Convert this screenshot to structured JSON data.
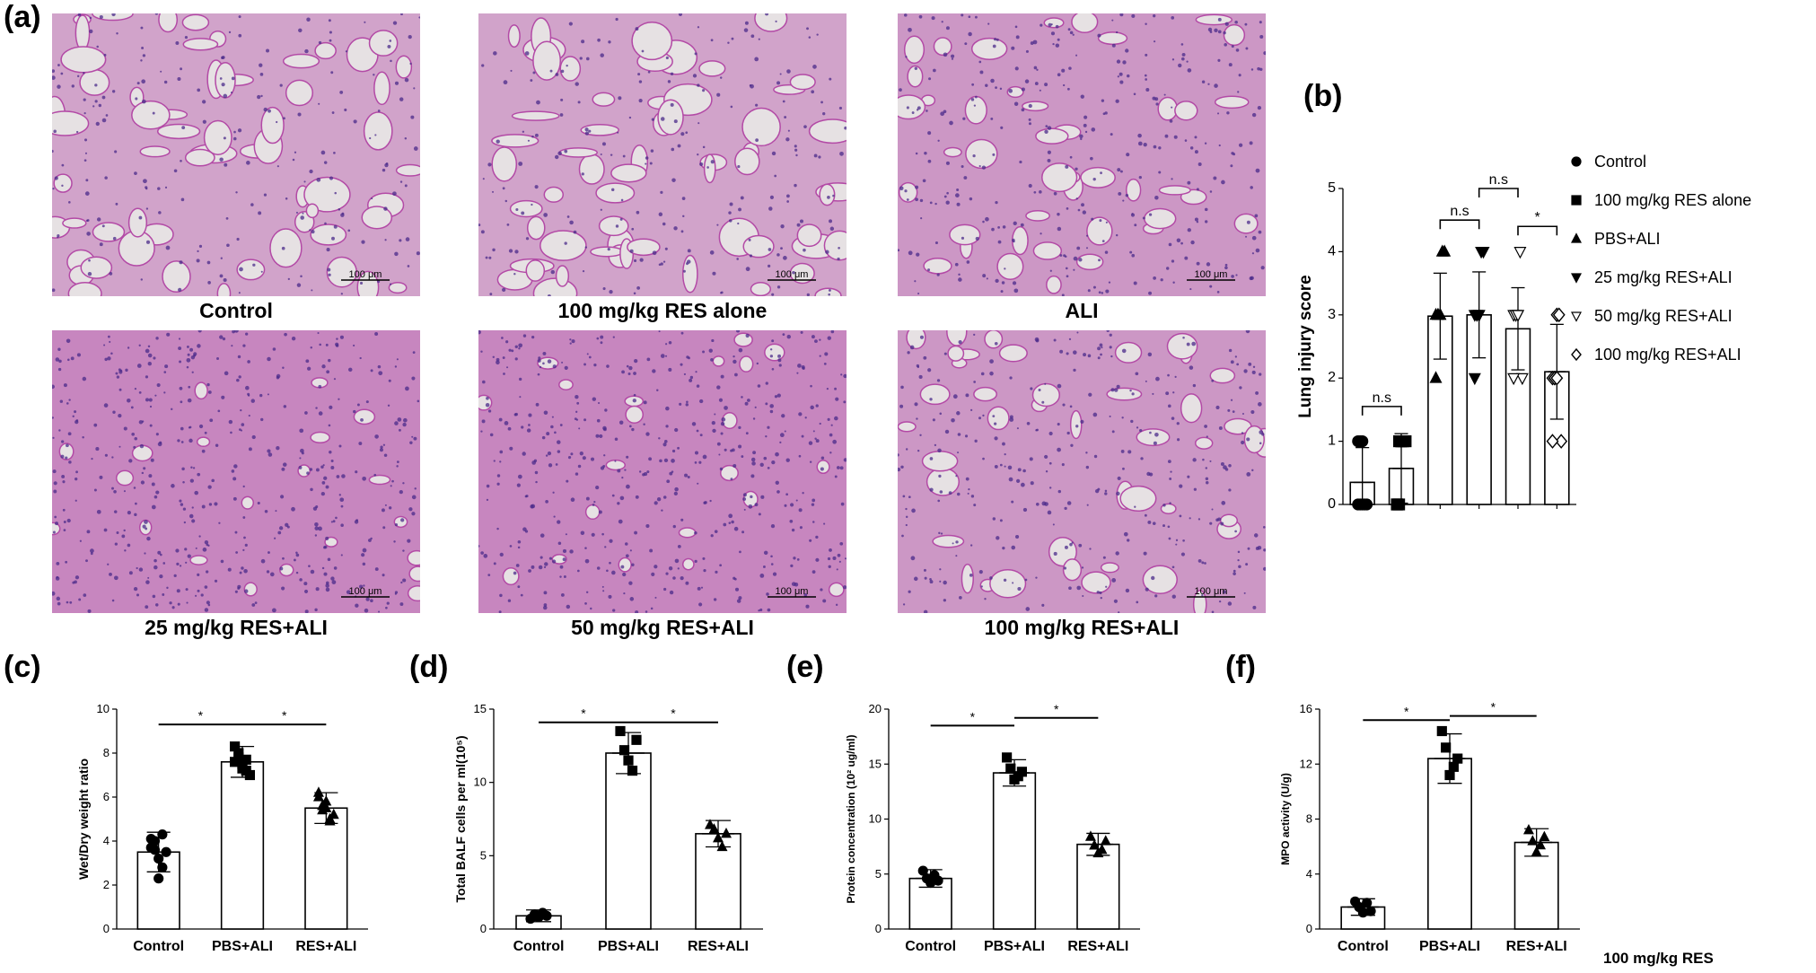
{
  "figure": {
    "panel_labels": [
      "(a)",
      "(b)",
      "(c)",
      "(d)",
      "(e)",
      "(f)"
    ],
    "micrographs": [
      {
        "caption": "Control",
        "scale": "100 μm",
        "density": "low"
      },
      {
        "caption": "100 mg/kg RES alone",
        "scale": "100 μm",
        "density": "low"
      },
      {
        "caption": "ALI",
        "scale": "100 μm",
        "density": "medium"
      },
      {
        "caption": "25 mg/kg RES+ALI",
        "scale": "100 μm",
        "density": "high"
      },
      {
        "caption": "50 mg/kg RES+ALI",
        "scale": "100 μm",
        "density": "high"
      },
      {
        "caption": "100 mg/kg RES+ALI",
        "scale": "100 μm",
        "density": "medium"
      }
    ],
    "bottom_right_label": "100 mg/kg RES",
    "colors": {
      "tissue": "#b34aa6",
      "nuclei": "#4a2a8a",
      "background": "#e6e1e3"
    }
  },
  "chart_data": [
    {
      "id": "b",
      "type": "bar",
      "ylabel": "Lung injury score",
      "ylim": [
        0,
        5
      ],
      "yticks": [
        0,
        1,
        2,
        3,
        4,
        5
      ],
      "categories": [
        "Control",
        "100 mg/kg RES alone",
        "PBS+ALI",
        "25 mg/kg RES+ALI",
        "50 mg/kg RES+ALI",
        "100 mg/kg RES+ALI"
      ],
      "values": [
        0.35,
        0.57,
        2.98,
        3.0,
        2.78,
        2.1
      ],
      "errors": [
        0.55,
        0.55,
        0.68,
        0.68,
        0.65,
        0.75
      ],
      "markers": [
        "circle",
        "square",
        "triangle-up",
        "triangle-down",
        "triangle-down-open",
        "diamond-open"
      ],
      "points": [
        [
          0,
          0,
          0,
          0,
          0,
          1,
          1,
          1
        ],
        [
          0,
          0,
          1,
          1,
          1,
          0,
          1,
          1
        ],
        [
          3,
          3,
          3,
          4,
          4,
          2,
          3,
          3
        ],
        [
          3,
          3,
          3,
          4,
          4,
          2,
          3,
          3
        ],
        [
          3,
          3,
          3,
          4,
          2,
          2,
          3,
          3
        ],
        [
          2,
          2,
          3,
          3,
          1,
          1,
          2,
          2
        ]
      ],
      "legend": [
        "Control",
        "100 mg/kg RES alone",
        "PBS+ALI",
        "25 mg/kg RES+ALI",
        "50 mg/kg RES+ALI",
        "100 mg/kg RES+ALI"
      ],
      "legend_position": "right",
      "brackets": [
        {
          "from": 0,
          "to": 1,
          "label": "n.s",
          "y": 1.55
        },
        {
          "from": 2,
          "to": 3,
          "label": "n.s",
          "y": 4.5
        },
        {
          "from": 3,
          "to": 4,
          "label": "n.s",
          "y": 5.0
        },
        {
          "from": 4,
          "to": 5,
          "label": "*",
          "y": 4.4
        }
      ]
    },
    {
      "id": "c",
      "type": "bar",
      "ylabel": "Wet/Dry weight ratio",
      "ylim": [
        0,
        10
      ],
      "yticks": [
        0,
        2,
        4,
        6,
        8,
        10
      ],
      "categories": [
        "Control",
        "PBS+ALI",
        "RES+ALI"
      ],
      "values": [
        3.5,
        7.6,
        5.5
      ],
      "errors": [
        0.9,
        0.7,
        0.7
      ],
      "marker": [
        "circle",
        "square",
        "triangle-up"
      ],
      "points": [
        [
          4.1,
          3.6,
          2.3,
          2.8,
          3.5,
          3.7,
          4.0,
          3.2,
          4.3
        ],
        [
          8.3,
          7.8,
          7.5,
          7.2,
          7.0,
          7.6,
          8.0,
          7.3,
          7.7
        ],
        [
          6.2,
          5.6,
          5.5,
          4.9,
          5.2,
          6.0,
          5.4,
          5.8,
          5.0
        ]
      ],
      "brackets": [
        {
          "from": 0,
          "to": 1,
          "label": "*",
          "y": 9.3
        },
        {
          "from": 1,
          "to": 2,
          "label": "*",
          "y": 9.3
        }
      ]
    },
    {
      "id": "d",
      "type": "bar",
      "ylabel": "Total BALF cells per ml(10⁵)",
      "ylim": [
        0,
        15
      ],
      "yticks": [
        0,
        5,
        10,
        15
      ],
      "categories": [
        "Control",
        "PBS+ALI",
        "RES+ALI"
      ],
      "values": [
        0.9,
        12.0,
        6.5
      ],
      "errors": [
        0.4,
        1.4,
        0.9
      ],
      "marker": [
        "circle",
        "square",
        "triangle-up"
      ],
      "points": [
        [
          0.7,
          1.0,
          0.8,
          1.1,
          0.9
        ],
        [
          13.5,
          12.2,
          11.5,
          10.8,
          12.9
        ],
        [
          7.1,
          6.8,
          6.2,
          5.6,
          6.5
        ]
      ],
      "brackets": [
        {
          "from": 0,
          "to": 1,
          "label": "*",
          "y": 14.1
        },
        {
          "from": 1,
          "to": 2,
          "label": "*",
          "y": 14.1
        }
      ]
    },
    {
      "id": "e",
      "type": "bar",
      "ylabel": "Protein concentration (10² ug/ml)",
      "ylim": [
        0,
        20
      ],
      "yticks": [
        0,
        5,
        10,
        15,
        20
      ],
      "categories": [
        "Control",
        "PBS+ALI",
        "RES+ALI"
      ],
      "values": [
        4.6,
        14.2,
        7.7
      ],
      "errors": [
        0.8,
        1.2,
        1.0
      ],
      "marker": [
        "circle",
        "square",
        "triangle-up"
      ],
      "points": [
        [
          5.3,
          4.6,
          4.2,
          4.9,
          4.4
        ],
        [
          15.6,
          14.6,
          13.6,
          13.9,
          14.3
        ],
        [
          8.4,
          7.6,
          6.9,
          7.2,
          8.0
        ]
      ],
      "brackets": [
        {
          "from": 0,
          "to": 1,
          "label": "*",
          "y": 18.5
        },
        {
          "from": 1,
          "to": 2,
          "label": "*",
          "y": 19.2
        }
      ]
    },
    {
      "id": "f",
      "type": "bar",
      "ylabel": "MPO activity (U/g)",
      "ylim": [
        0,
        16
      ],
      "yticks": [
        0,
        4,
        8,
        12,
        16
      ],
      "categories": [
        "Control",
        "PBS+ALI",
        "RES+ALI"
      ],
      "values": [
        1.6,
        12.4,
        6.3
      ],
      "errors": [
        0.6,
        1.8,
        1.0
      ],
      "marker": [
        "circle",
        "square",
        "triangle-up"
      ],
      "points": [
        [
          2.0,
          1.6,
          1.2,
          1.9,
          1.3
        ],
        [
          14.4,
          13.2,
          11.2,
          11.8,
          12.4
        ],
        [
          7.2,
          6.4,
          5.6,
          6.1,
          6.7
        ]
      ],
      "brackets": [
        {
          "from": 0,
          "to": 1,
          "label": "*",
          "y": 15.2
        },
        {
          "from": 1,
          "to": 2,
          "label": "*",
          "y": 15.5
        }
      ]
    }
  ]
}
